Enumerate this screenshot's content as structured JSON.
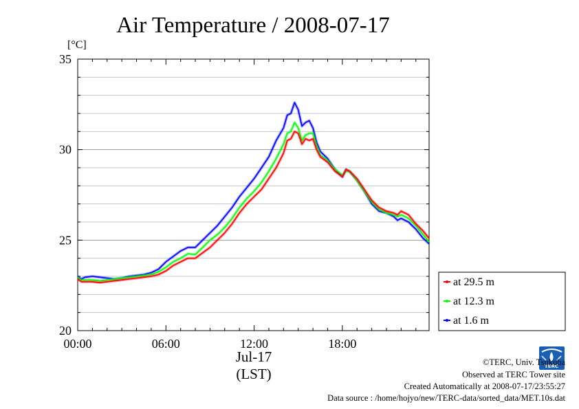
{
  "chart_data": {
    "type": "line",
    "title": "Air Temperature / 2008-07-17",
    "ylabel": "[°C]",
    "xlabel": "(LST)",
    "date_label": "Jul-17",
    "ylim": [
      20,
      35
    ],
    "xlim": [
      0,
      23.9
    ],
    "yticks": [
      "20",
      "25",
      "30",
      "35"
    ],
    "ytick_values": [
      20,
      25,
      30,
      35
    ],
    "xticks": [
      "00:00",
      "06:00",
      "12:00",
      "18:00"
    ],
    "xtick_values": [
      0,
      6,
      12,
      18
    ],
    "grid": true,
    "legend_position": "right",
    "x": [
      0,
      0.25,
      0.5,
      1,
      1.5,
      2,
      2.5,
      3,
      3.5,
      4,
      4.5,
      5,
      5.5,
      6,
      6.5,
      7,
      7.5,
      8,
      8.5,
      9,
      9.5,
      10,
      10.5,
      11,
      11.5,
      12,
      12.5,
      13,
      13.5,
      14,
      14.25,
      14.5,
      14.75,
      15,
      15.25,
      15.5,
      15.75,
      16,
      16.25,
      16.5,
      17,
      17.5,
      18,
      18.25,
      18.5,
      19,
      19.5,
      20,
      20.5,
      21,
      21.5,
      21.75,
      22,
      22.5,
      23,
      23.5,
      23.9
    ],
    "series": [
      {
        "name": "at 29.5 m",
        "color": "#ff0000",
        "values": [
          22.85,
          22.7,
          22.7,
          22.7,
          22.65,
          22.7,
          22.75,
          22.8,
          22.85,
          22.9,
          22.95,
          23.0,
          23.1,
          23.3,
          23.6,
          23.8,
          24.0,
          24.0,
          24.3,
          24.6,
          25.0,
          25.4,
          25.9,
          26.5,
          27.0,
          27.4,
          27.8,
          28.4,
          29.0,
          29.8,
          30.5,
          30.6,
          31.0,
          30.9,
          30.3,
          30.6,
          30.5,
          30.6,
          30.0,
          29.6,
          29.3,
          28.8,
          28.5,
          28.9,
          28.8,
          28.4,
          27.8,
          27.2,
          26.8,
          26.6,
          26.5,
          26.4,
          26.6,
          26.4,
          25.9,
          25.5,
          25.1
        ]
      },
      {
        "name": "at 12.3 m",
        "color": "#00ff00",
        "values": [
          22.95,
          22.8,
          22.8,
          22.8,
          22.75,
          22.8,
          22.85,
          22.9,
          22.95,
          23.0,
          23.05,
          23.1,
          23.25,
          23.5,
          23.8,
          24.0,
          24.25,
          24.2,
          24.6,
          25.0,
          25.3,
          25.7,
          26.2,
          26.8,
          27.3,
          27.7,
          28.2,
          28.8,
          29.5,
          30.3,
          30.9,
          31.0,
          31.5,
          31.2,
          30.5,
          30.8,
          30.9,
          30.9,
          30.2,
          29.7,
          29.4,
          28.9,
          28.6,
          28.8,
          28.8,
          28.3,
          27.7,
          27.1,
          26.7,
          26.5,
          26.4,
          26.3,
          26.4,
          26.2,
          25.8,
          25.3,
          24.9
        ]
      },
      {
        "name": "at 1.6 m",
        "color": "#0000ff",
        "values": [
          23.0,
          22.85,
          22.95,
          23.0,
          22.95,
          22.9,
          22.85,
          22.9,
          23.0,
          23.05,
          23.1,
          23.2,
          23.4,
          23.8,
          24.1,
          24.4,
          24.6,
          24.6,
          25.0,
          25.4,
          25.8,
          26.3,
          26.8,
          27.4,
          27.9,
          28.4,
          29.0,
          29.6,
          30.5,
          31.2,
          31.9,
          32.0,
          32.6,
          32.2,
          31.3,
          31.5,
          31.6,
          31.2,
          30.4,
          29.9,
          29.5,
          28.9,
          28.5,
          28.9,
          28.8,
          28.3,
          27.7,
          27.0,
          26.6,
          26.5,
          26.3,
          26.1,
          26.2,
          26.0,
          25.6,
          25.1,
          24.8
        ]
      }
    ]
  },
  "credits": {
    "org": "©TERC, Univ. Tsukuba",
    "site": "Observed at TERC Tower site",
    "created": "Created Automatically at 2008-07-17/23:55:27",
    "source": "Data source : /home/hojyo/new/TERC-data/sorted_data/MET.10s.dat",
    "logo_text": "TERC"
  }
}
